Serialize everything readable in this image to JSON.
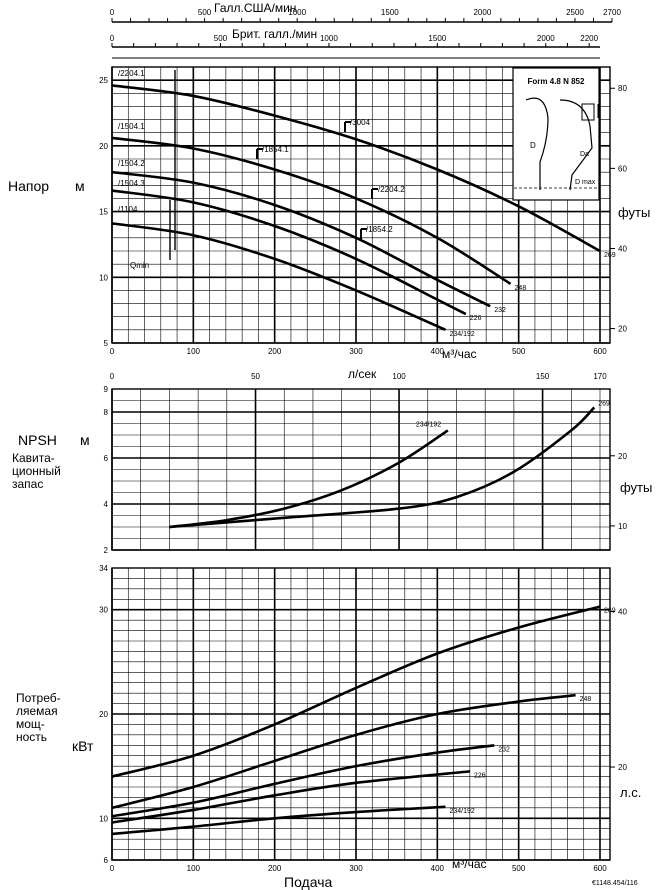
{
  "chart_data": [
    {
      "type": "line",
      "panel": "head",
      "ylabel": "Напор",
      "yunit": "м",
      "yunit_right": "футы",
      "xlabel_top1": "Галл.США/мин",
      "xlabel_top2": "Брит. галл./мин",
      "xunit": "м³/час",
      "xlim": [
        0,
        630
      ],
      "ylim": [
        5,
        26
      ],
      "x_ticks": [
        "0",
        "100",
        "200",
        "300",
        "400",
        "500",
        "600"
      ],
      "y_ticks": [
        "5",
        "10",
        "15",
        "20",
        "25"
      ],
      "right_ticks": [
        "20",
        "40",
        "60",
        "80"
      ],
      "top1_ticks": [
        "0",
        "500",
        "1000",
        "1500",
        "2000",
        "2500",
        "2700"
      ],
      "top2_ticks": [
        "0",
        "500",
        "1000",
        "1500",
        "2000",
        "2200"
      ],
      "grid": true,
      "series": [
        {
          "name": "269",
          "x": [
            0,
            100,
            200,
            300,
            400,
            500,
            600
          ],
          "y": [
            24.6,
            23.8,
            22.3,
            20.5,
            18.2,
            15.4,
            12.0
          ]
        },
        {
          "name": "248",
          "x": [
            0,
            100,
            200,
            300,
            400,
            490
          ],
          "y": [
            20.6,
            19.8,
            18.2,
            16.0,
            13.0,
            9.5
          ]
        },
        {
          "name": "232",
          "x": [
            0,
            100,
            200,
            300,
            400,
            465
          ],
          "y": [
            18.0,
            17.2,
            15.5,
            13.0,
            9.8,
            7.8
          ]
        },
        {
          "name": "226",
          "x": [
            0,
            100,
            200,
            300,
            400,
            435
          ],
          "y": [
            16.6,
            15.7,
            13.9,
            11.4,
            8.3,
            7.2
          ]
        },
        {
          "name": "234/192",
          "x": [
            0,
            100,
            200,
            300,
            410
          ],
          "y": [
            14.1,
            13.2,
            11.4,
            9.0,
            6.0
          ]
        }
      ],
      "annotations": [
        "/2204.1",
        "/1504.1",
        "/1504.2",
        "/1504.3",
        "/1104",
        "/3004",
        "/1854.1",
        "/2204.2",
        "/1854.2",
        "Qmin"
      ],
      "inset": {
        "title": "Form 4.8   N 852",
        "labels": [
          "D",
          "Da",
          "D max"
        ]
      }
    },
    {
      "type": "line",
      "panel": "npsh",
      "ylabel": "NPSH",
      "ylabel2": "Кавита- ционный запас",
      "yunit": "м",
      "yunit_right": "футы",
      "xlabel_top": "л/сек",
      "xlim": [
        0,
        175
      ],
      "ylim": [
        2,
        9
      ],
      "x_ticks": [
        "0",
        "50",
        "100",
        "150",
        "170"
      ],
      "y_ticks": [
        "2",
        "4",
        "6",
        "8",
        "9"
      ],
      "right_ticks": [
        "10",
        "20"
      ],
      "grid": true,
      "series": [
        {
          "name": "234/192",
          "x": [
            20,
            40,
            60,
            80,
            100,
            117
          ],
          "y": [
            3.0,
            3.3,
            3.8,
            4.6,
            5.8,
            7.2
          ]
        },
        {
          "name": "269",
          "x": [
            20,
            60,
            100,
            120,
            140,
            160,
            168
          ],
          "y": [
            3.0,
            3.4,
            3.8,
            4.3,
            5.4,
            7.2,
            8.2
          ]
        }
      ]
    },
    {
      "type": "line",
      "panel": "power",
      "ylabel": "Потреб- ляемая мощ- ность",
      "yunit": "кВт",
      "yunit_right": "л.с.",
      "xlabel": "Подача",
      "xunit": "м³/час",
      "xlim": [
        0,
        630
      ],
      "ylim": [
        6,
        34
      ],
      "x_ticks": [
        "0",
        "100",
        "200",
        "300",
        "400",
        "500",
        "600"
      ],
      "y_ticks": [
        "6",
        "10",
        "20",
        "30",
        "34"
      ],
      "right_ticks": [
        "20",
        "40"
      ],
      "grid": true,
      "series": [
        {
          "name": "269",
          "x": [
            0,
            100,
            200,
            300,
            400,
            500,
            600
          ],
          "y": [
            14.0,
            16.0,
            19.0,
            22.5,
            25.8,
            28.3,
            30.3
          ]
        },
        {
          "name": "248",
          "x": [
            0,
            100,
            200,
            300,
            400,
            500,
            570
          ],
          "y": [
            11.0,
            13.0,
            15.5,
            18.0,
            20.0,
            21.2,
            21.8
          ]
        },
        {
          "name": "232",
          "x": [
            0,
            100,
            200,
            300,
            400,
            470
          ],
          "y": [
            10.2,
            11.5,
            13.3,
            15.0,
            16.3,
            17.0
          ]
        },
        {
          "name": "226",
          "x": [
            0,
            100,
            200,
            300,
            440
          ],
          "y": [
            9.6,
            10.8,
            12.2,
            13.4,
            14.5
          ]
        },
        {
          "name": "234/192",
          "x": [
            0,
            100,
            200,
            300,
            410
          ],
          "y": [
            8.5,
            9.2,
            10.0,
            10.6,
            11.1
          ]
        }
      ]
    }
  ],
  "footer_code": "€1148.454/116"
}
